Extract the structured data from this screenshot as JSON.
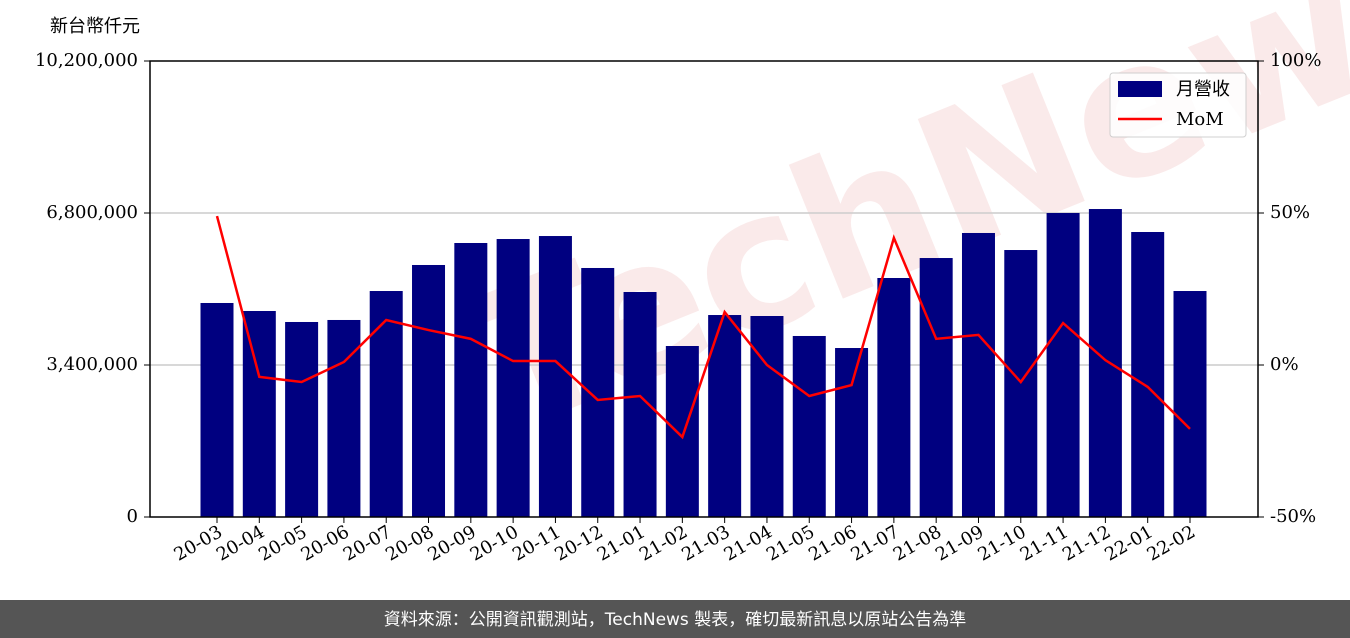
{
  "chart_data": {
    "type": "bar-line",
    "y_label": "新台幣仟元",
    "watermark": "TechNews",
    "footer": "資料來源：公開資訊觀測站，TechNews 製表，確切最新訊息以原站公告為準",
    "categories": [
      "20-03",
      "20-04",
      "20-05",
      "20-06",
      "20-07",
      "20-08",
      "20-09",
      "20-10",
      "20-11",
      "20-12",
      "21-01",
      "21-02",
      "21-03",
      "21-04",
      "21-05",
      "21-06",
      "21-07",
      "21-08",
      "21-09",
      "21-10",
      "21-11",
      "21-12",
      "22-01",
      "22-02"
    ],
    "series": [
      {
        "name": "月營收",
        "type": "bar",
        "color": "#000080",
        "values": [
          4787000,
          4608000,
          4362000,
          4407000,
          5055000,
          5637000,
          6129000,
          6218000,
          6285000,
          5570000,
          5033000,
          3825000,
          4518000,
          4496000,
          4049000,
          3780000,
          5346000,
          5793000,
          6353000,
          5972000,
          6800000,
          6889000,
          6375000,
          5055000
        ]
      },
      {
        "name": "MoM",
        "type": "line",
        "color": "#ff0000",
        "axis": "y2",
        "values": [
          49,
          -3.9,
          -5.6,
          1,
          14.8,
          11.5,
          8.6,
          1.3,
          1.3,
          -11.5,
          -10.2,
          -23.7,
          17.4,
          0,
          -10.2,
          -6.6,
          41.8,
          8.6,
          9.9,
          -5.6,
          13.8,
          1.6,
          -7.2,
          -21
        ]
      }
    ],
    "ylim": [
      0,
      10200000
    ],
    "yticks": [
      0,
      {
        "value": 3400000,
        "label": "3,400,000"
      },
      {
        "value": 6800000,
        "label": "6,800,000"
      },
      {
        "value": 10200000,
        "label": "10,200,000"
      }
    ],
    "y2lim": [
      -50,
      100
    ],
    "y2ticks": [
      {
        "value": -50,
        "label": "-50%"
      },
      {
        "value": 0,
        "label": "0%"
      },
      {
        "value": 50,
        "label": "50%"
      },
      {
        "value": 100,
        "label": "100%"
      }
    ],
    "grid": true,
    "legend": "upper right"
  }
}
